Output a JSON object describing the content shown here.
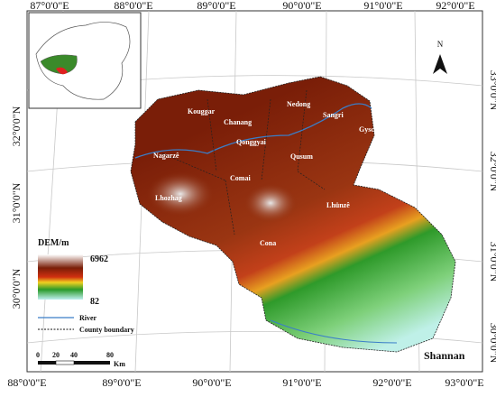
{
  "longitudes_top": [
    "87°0'0\"E",
    "88°0'0\"E",
    "89°0'0\"E",
    "90°0'0\"E",
    "91°0'0\"E",
    "92°0'0\"E"
  ],
  "longitudes_bottom": [
    "88°0'0\"E",
    "89°0'0\"E",
    "90°0'0\"E",
    "91°0'0\"E",
    "92°0'0\"E",
    "93°0'0\"E"
  ],
  "latitudes_left": [
    "32°0'0\"N",
    "31°0'0\"N",
    "30°0'0\"N"
  ],
  "latitudes_right": [
    "33°0'0\"N",
    "32°0'0\"N",
    "31°0'0\"N",
    "30°0'0\"N"
  ],
  "places": [
    "Kouggar",
    "Nedong",
    "Chanang",
    "Sangri",
    "Gysca",
    "Qonggyai",
    "Qusum",
    "Nagarzê",
    "Comai",
    "Lhozhag",
    "Lhünzê",
    "Cona"
  ],
  "legend": {
    "title": "DEM/m",
    "max": 6962,
    "min": 82,
    "river": "River",
    "boundary": "County boundary"
  },
  "scale": [
    "0",
    "20",
    "40",
    "80"
  ],
  "scale_unit": "Km",
  "north": "N",
  "region": "Shannan"
}
